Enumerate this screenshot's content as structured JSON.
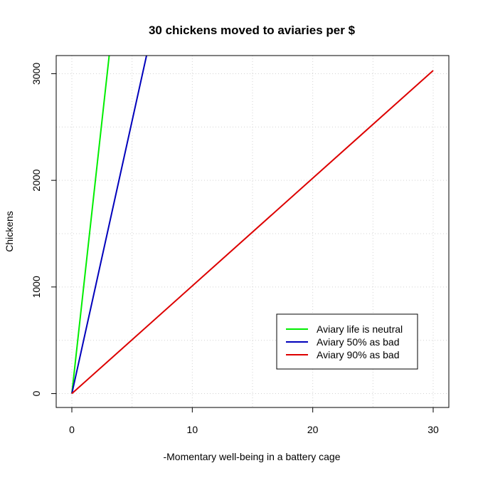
{
  "chart_data": {
    "type": "line",
    "title": "30 chickens moved to aviaries per $",
    "xlabel": "-Momentary well-being in a battery cage",
    "ylabel": "Chickens",
    "xlim": [
      -1.3,
      31.3
    ],
    "ylim": [
      -130,
      3170
    ],
    "x_ticks": [
      0,
      10,
      20,
      30
    ],
    "y_ticks": [
      0,
      1000,
      2000,
      3000
    ],
    "x_tick_labels": [
      "0",
      "10",
      "20",
      "30"
    ],
    "y_tick_labels": [
      "0",
      "1000",
      "2000",
      "3000"
    ],
    "grid": true,
    "legend_position": "bottom-right",
    "series": [
      {
        "name": "Aviary life is neutral",
        "color": "#00ee00",
        "x": [
          0,
          3.1
        ],
        "y": [
          0,
          3170
        ]
      },
      {
        "name": "Aviary 50% as bad",
        "color": "#0000bb",
        "x": [
          0,
          6.2
        ],
        "y": [
          0,
          3170
        ]
      },
      {
        "name": "Aviary 90% as bad",
        "color": "#dd0000",
        "x": [
          0,
          30
        ],
        "y": [
          0,
          3030
        ]
      }
    ]
  }
}
